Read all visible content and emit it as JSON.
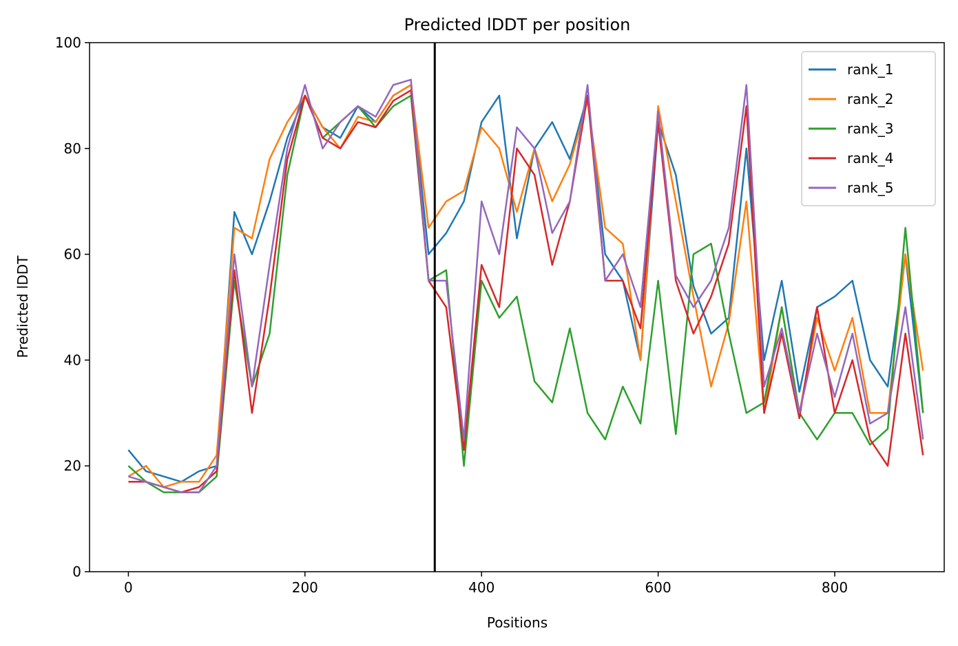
{
  "chart_data": {
    "type": "line",
    "title": "Predicted lDDT per position",
    "xlabel": "Positions",
    "ylabel": "Predicted lDDT",
    "xlim": [
      -44,
      924
    ],
    "ylim": [
      0,
      100
    ],
    "x_ticks": [
      0,
      200,
      400,
      600,
      800
    ],
    "y_ticks": [
      0,
      20,
      40,
      60,
      80,
      100
    ],
    "grid": false,
    "legend_position": "top-right",
    "vline_x": 347,
    "vline_color": "#000000",
    "x_step": 20,
    "series": [
      {
        "name": "rank_1",
        "color": "#1f77b4",
        "values": [
          23,
          19,
          18,
          17,
          19,
          20,
          68,
          60,
          70,
          82,
          90,
          84,
          82,
          88,
          85,
          90,
          92,
          60,
          64,
          70,
          85,
          90,
          63,
          80,
          85,
          78,
          90,
          60,
          55,
          40,
          85,
          75,
          54,
          45,
          48,
          80,
          40,
          55,
          34,
          50,
          52,
          55,
          40,
          35,
          60,
          30
        ]
      },
      {
        "name": "rank_2",
        "color": "#ff7f0e",
        "values": [
          18,
          20,
          16,
          17,
          17,
          22,
          65,
          63,
          78,
          85,
          90,
          84,
          80,
          86,
          85,
          90,
          92,
          65,
          70,
          72,
          84,
          80,
          68,
          80,
          70,
          77,
          89,
          65,
          62,
          40,
          88,
          70,
          52,
          35,
          47,
          70,
          30,
          50,
          30,
          48,
          38,
          48,
          30,
          30,
          60,
          38
        ]
      },
      {
        "name": "rank_3",
        "color": "#2ca02c",
        "values": [
          20,
          17,
          15,
          15,
          15,
          18,
          55,
          35,
          45,
          75,
          90,
          82,
          85,
          88,
          84,
          88,
          90,
          55,
          57,
          20,
          55,
          48,
          52,
          36,
          32,
          46,
          30,
          25,
          35,
          28,
          55,
          26,
          60,
          62,
          45,
          30,
          32,
          50,
          30,
          25,
          30,
          30,
          24,
          27,
          65,
          30
        ]
      },
      {
        "name": "rank_4",
        "color": "#d62728",
        "values": [
          17,
          17,
          16,
          15,
          16,
          19,
          57,
          30,
          52,
          78,
          90,
          82,
          80,
          85,
          84,
          89,
          91,
          55,
          50,
          23,
          58,
          50,
          80,
          75,
          58,
          70,
          90,
          55,
          55,
          46,
          85,
          55,
          45,
          52,
          62,
          88,
          30,
          45,
          29,
          50,
          30,
          40,
          25,
          20,
          45,
          22
        ]
      },
      {
        "name": "rank_5",
        "color": "#9467bd",
        "values": [
          18,
          17,
          16,
          15,
          15,
          20,
          60,
          35,
          58,
          80,
          92,
          80,
          85,
          88,
          86,
          92,
          93,
          55,
          55,
          25,
          70,
          60,
          84,
          80,
          64,
          70,
          92,
          55,
          60,
          50,
          87,
          56,
          50,
          55,
          65,
          92,
          35,
          46,
          30,
          45,
          33,
          45,
          28,
          30,
          50,
          25
        ]
      }
    ]
  }
}
